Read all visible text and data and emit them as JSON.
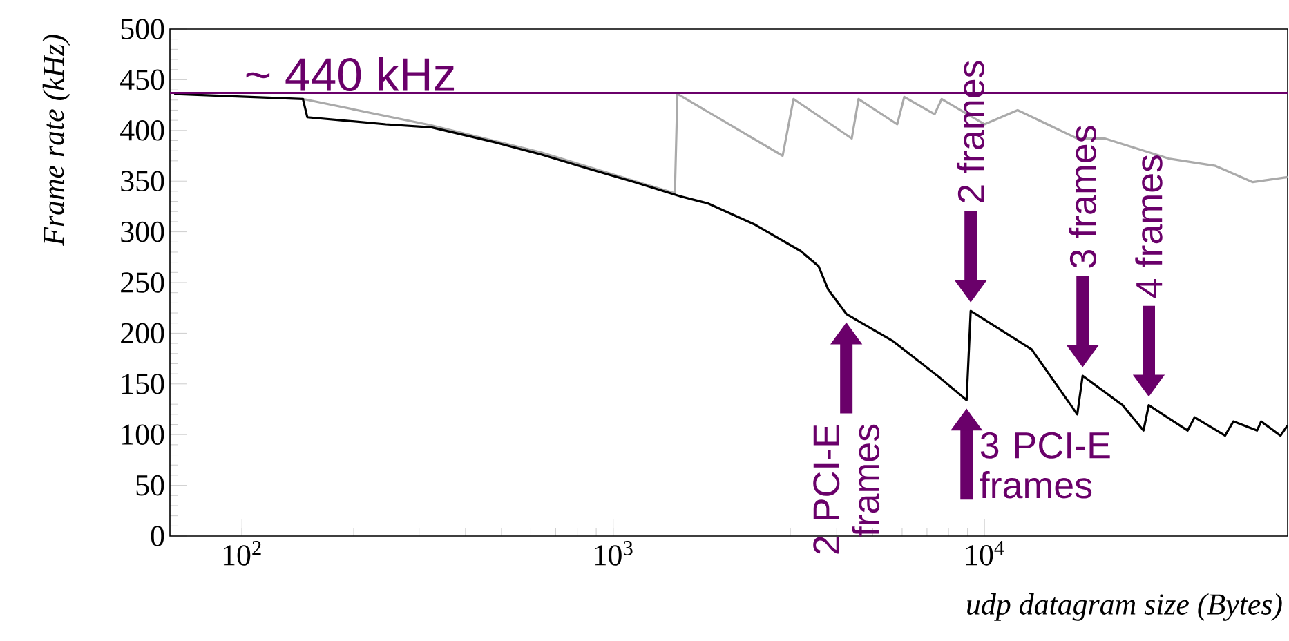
{
  "chart_data": {
    "type": "line",
    "xlabel": "udp datagram size (Bytes)",
    "ylabel": "Frame rate (kHz)",
    "log": "x",
    "xlim": [
      64,
      65536
    ],
    "ylim": [
      0,
      500
    ],
    "xticks": [
      {
        "value": 100,
        "label": "10$^{2}$"
      },
      {
        "value": 1000,
        "label": "10$^{3}$"
      },
      {
        "value": 10000,
        "label": "10$^{4}$"
      }
    ],
    "yticks": [
      0,
      50,
      100,
      150,
      200,
      250,
      300,
      350,
      400,
      450,
      500
    ],
    "series": [
      {
        "color": "#aaaaaa",
        "x": [
          146,
          324,
          643,
          1143,
          1466,
          1489,
          2860,
          3060,
          4390,
          4580,
          5820,
          6080,
          7340,
          7670,
          10000,
          12280,
          17780,
          21090,
          31550,
          41880,
          52800,
          65500
        ],
        "values": [
          431,
          405,
          378,
          350,
          338,
          436,
          375,
          431,
          392,
          431,
          406,
          433,
          416,
          431,
          406,
          420,
          392,
          392,
          372,
          365,
          349,
          354
        ]
      },
      {
        "color": "#000000",
        "x": [
          65.7,
          146,
          150,
          244,
          324,
          484,
          643,
          861,
          1143,
          1517,
          1800,
          2410,
          3200,
          3575,
          3795,
          4245,
          5680,
          7530,
          8950,
          9180,
          13400,
          17780,
          18380,
          23550,
          26800,
          27700,
          35250,
          36800,
          44460,
          46800,
          54200,
          55600,
          62700,
          65500
        ],
        "values": [
          436,
          431,
          413,
          406,
          403,
          388,
          376,
          362,
          349,
          335,
          328,
          307,
          281,
          266,
          243,
          219,
          192,
          157,
          134,
          222,
          184,
          120,
          158,
          129,
          104,
          129,
          104,
          117,
          99,
          113,
          104,
          113,
          99,
          109
        ]
      }
    ],
    "ref_lines": [
      {
        "axis": "y",
        "value": 437,
        "label": "~ 440 kHz",
        "color": "#6a006a"
      }
    ],
    "annotations": [
      {
        "text": "2 frames",
        "x": 9180,
        "y": 222
      },
      {
        "text": "3 frames",
        "x": 18380,
        "y": 158
      },
      {
        "text": "4 frames",
        "x": 27700,
        "y": 129
      },
      {
        "text": "2 PCI-E frames",
        "x": 4245,
        "y": 219
      },
      {
        "text": "3 PCI-E frames",
        "x": 8950,
        "y": 134
      }
    ]
  }
}
